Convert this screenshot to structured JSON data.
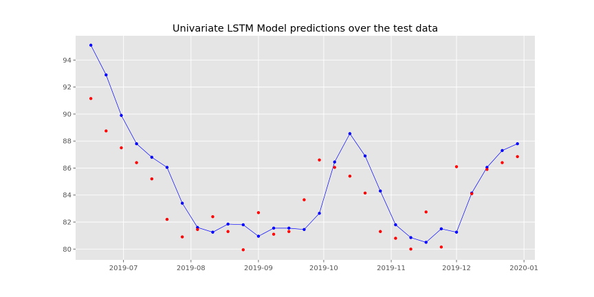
{
  "chart_data": {
    "type": "line",
    "title": "Univariate LSTM Model predictions over the test data",
    "xlabel": "",
    "ylabel": "",
    "x_axis": {
      "type": "date",
      "min": "2019-06-09",
      "max": "2020-01-06",
      "ticks": [
        "2019-07-01",
        "2019-08-01",
        "2019-09-01",
        "2019-10-01",
        "2019-11-01",
        "2019-12-01",
        "2020-01-01"
      ],
      "tick_labels": [
        "2019-07",
        "2019-08",
        "2019-09",
        "2019-10",
        "2019-11",
        "2019-12",
        "2020-01"
      ]
    },
    "y_axis": {
      "ylim": [
        79.2,
        95.8
      ],
      "ticks": [
        80,
        82,
        84,
        86,
        88,
        90,
        92,
        94
      ],
      "tick_labels": [
        "80",
        "82",
        "84",
        "86",
        "88",
        "90",
        "92",
        "94"
      ]
    },
    "grid": true,
    "style": "ggplot",
    "x": [
      "2019-06-16",
      "2019-06-23",
      "2019-06-30",
      "2019-07-07",
      "2019-07-14",
      "2019-07-21",
      "2019-07-28",
      "2019-08-04",
      "2019-08-11",
      "2019-08-18",
      "2019-08-25",
      "2019-09-01",
      "2019-09-08",
      "2019-09-15",
      "2019-09-22",
      "2019-09-29",
      "2019-10-06",
      "2019-10-13",
      "2019-10-20",
      "2019-10-27",
      "2019-11-03",
      "2019-11-10",
      "2019-11-17",
      "2019-11-24",
      "2019-12-01",
      "2019-12-08",
      "2019-12-15",
      "2019-12-22",
      "2019-12-29"
    ],
    "series": [
      {
        "color": "#0000ff",
        "line": true,
        "marker": "dot",
        "values": [
          95.1,
          92.9,
          89.9,
          87.8,
          86.8,
          86.05,
          83.4,
          81.6,
          81.25,
          81.85,
          81.8,
          80.95,
          81.55,
          81.55,
          81.45,
          82.65,
          86.45,
          88.55,
          86.9,
          84.3,
          81.8,
          80.85,
          80.5,
          81.5,
          81.25,
          84.15,
          86.05,
          87.3,
          87.8
        ]
      },
      {
        "color": "#ff0000",
        "line": false,
        "marker": "dot",
        "values": [
          91.15,
          88.75,
          87.5,
          86.4,
          85.2,
          82.2,
          80.9,
          81.45,
          82.4,
          81.3,
          79.95,
          82.7,
          81.1,
          81.3,
          83.65,
          86.6,
          86.05,
          85.4,
          84.15,
          81.3,
          80.8,
          80.0,
          82.75,
          80.15,
          86.1,
          84.1,
          85.9,
          86.4,
          86.85
        ]
      }
    ]
  },
  "colors": {
    "plot_background": "#e5e5e5",
    "grid": "#ffffff",
    "figure_background": "#ffffff",
    "text": "#555555",
    "title": "#000000"
  }
}
